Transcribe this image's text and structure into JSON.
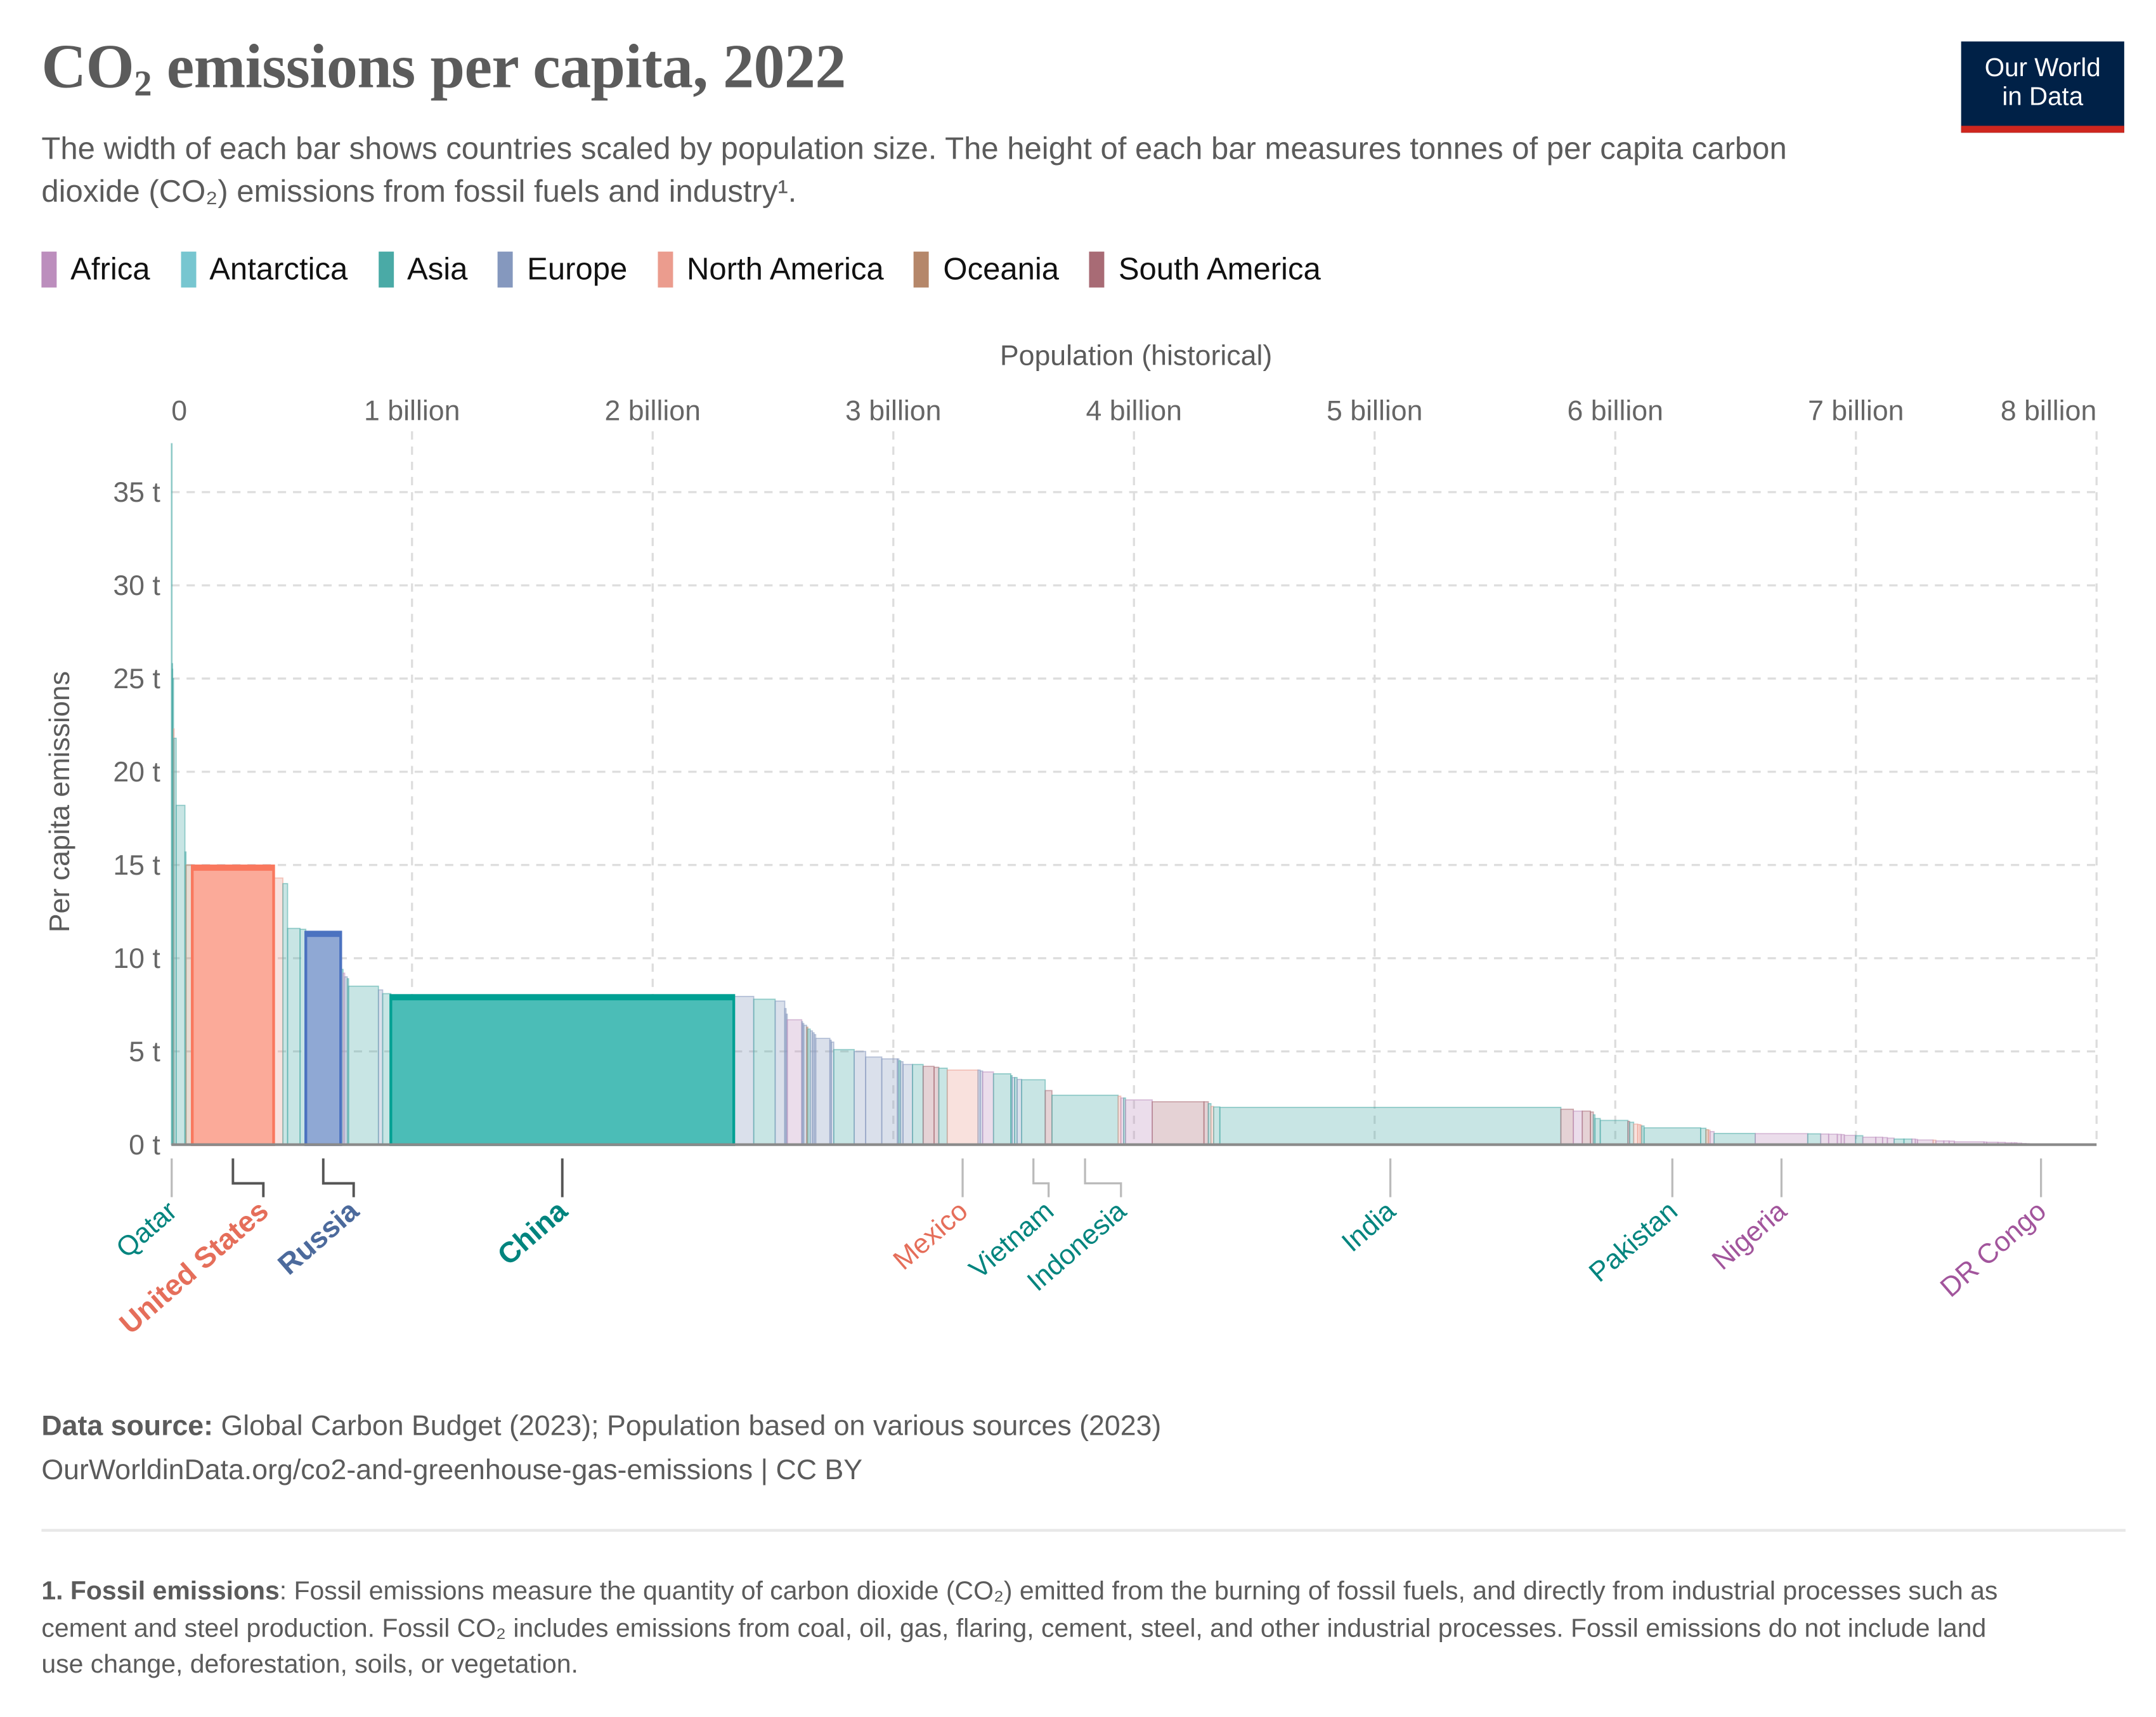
{
  "header": {
    "title_pre": "CO",
    "title_sub": "2",
    "title_post": " emissions per capita, 2022",
    "subtitle": "The width of each bar shows countries scaled by population size. The height of each bar measures tonnes of per capita carbon dioxide (CO₂) emissions from fossil fuels and industry¹.",
    "logo_line1": "Our World",
    "logo_line2": "in Data"
  },
  "legend": [
    {
      "label": "Africa",
      "color": "#bc8ebd"
    },
    {
      "label": "Antarctica",
      "color": "#77c6d0"
    },
    {
      "label": "Asia",
      "color": "#4aaaa6"
    },
    {
      "label": "Europe",
      "color": "#8598be"
    },
    {
      "label": "North America",
      "color": "#eb9c8e"
    },
    {
      "label": "Oceania",
      "color": "#b5876a"
    },
    {
      "label": "South America",
      "color": "#a86b75"
    }
  ],
  "chart_data": {
    "type": "bar",
    "variant": "variable-width (width = population, height = per capita emissions)",
    "xlabel": "Population (historical)",
    "ylabel": "Per capita emissions",
    "x_ticks": [
      "0",
      "1 billion",
      "2 billion",
      "3 billion",
      "4 billion",
      "5 billion",
      "6 billion",
      "7 billion",
      "8 billion"
    ],
    "y_ticks": [
      "0 t",
      "5 t",
      "10 t",
      "15 t",
      "20 t",
      "25 t",
      "30 t",
      "35 t"
    ],
    "xlim_billions": [
      0,
      8
    ],
    "ylim_tonnes": [
      0,
      38
    ],
    "grid": true,
    "highlight_colors": {
      "United States": {
        "fill": "#fbaa99",
        "stroke": "#f9785e"
      },
      "Russia": {
        "fill": "#8fa8d4",
        "stroke": "#4b72c0"
      },
      "China": {
        "fill": "#4bbdb7",
        "stroke": "#00a093"
      }
    },
    "label_colors": {
      "Asia": "#00847e",
      "North America": "#e56e5a",
      "Europe": "#4c6a9c",
      "Africa": "#a2559c",
      "South America": "#883039",
      "Oceania": "#8a5a3c"
    },
    "bars": [
      {
        "c": "Asia",
        "pop": 2.7,
        "v": 37.6,
        "label": "Qatar"
      },
      {
        "c": "Asia",
        "pop": 0.45,
        "v": 25.8
      },
      {
        "c": "Asia",
        "pop": 1.5,
        "v": 25.5
      },
      {
        "c": "Asia",
        "pop": 4.3,
        "v": 25.0
      },
      {
        "c": "North America",
        "pop": 1.5,
        "v": 22.3
      },
      {
        "c": "Asia",
        "pop": 9.4,
        "v": 21.8
      },
      {
        "c": "Asia",
        "pop": 36.4,
        "v": 18.2
      },
      {
        "c": "Asia",
        "pop": 4.6,
        "v": 15.7
      },
      {
        "c": "Oceania",
        "pop": 26,
        "v": 15.0
      },
      {
        "c": "North America",
        "pop": 338,
        "v": 14.95,
        "label": "United States",
        "highlight": true
      },
      {
        "c": "North America",
        "pop": 38.5,
        "v": 14.3
      },
      {
        "c": "Asia",
        "pop": 19.6,
        "v": 14.0
      },
      {
        "c": "Asia",
        "pop": 51.8,
        "v": 11.6
      },
      {
        "c": "Asia",
        "pop": 23.9,
        "v": 11.55
      },
      {
        "c": "Europe",
        "pop": 145,
        "v": 11.4,
        "label": "Russia",
        "highlight": true
      },
      {
        "c": "Asia",
        "pop": 3.4,
        "v": 11.0
      },
      {
        "c": "Asia",
        "pop": 6.4,
        "v": 9.4
      },
      {
        "c": "Africa",
        "pop": 6.8,
        "v": 9.2
      },
      {
        "c": "Europe",
        "pop": 10.5,
        "v": 9.0
      },
      {
        "c": "Asia",
        "pop": 5.6,
        "v": 8.9
      },
      {
        "c": "Asia",
        "pop": 124,
        "v": 8.5
      },
      {
        "c": "Europe",
        "pop": 17.6,
        "v": 8.3
      },
      {
        "c": "Asia",
        "pop": 34,
        "v": 8.1
      },
      {
        "c": "Asia",
        "pop": 1425,
        "v": 8.0,
        "label": "China",
        "highlight": true
      },
      {
        "c": "Europe",
        "pop": 83,
        "v": 7.95
      },
      {
        "c": "Asia",
        "pop": 89,
        "v": 7.8
      },
      {
        "c": "Europe",
        "pop": 39.9,
        "v": 7.7
      },
      {
        "c": "Europe",
        "pop": 5.5,
        "v": 7.3
      },
      {
        "c": "Europe",
        "pop": 5.0,
        "v": 7.0
      },
      {
        "c": "Africa",
        "pop": 60,
        "v": 6.7
      },
      {
        "c": "Europe",
        "pop": 3.2,
        "v": 6.6
      },
      {
        "c": "Europe",
        "pop": 5.5,
        "v": 6.5
      },
      {
        "c": "Europe",
        "pop": 11.7,
        "v": 6.4
      },
      {
        "c": "Oceania",
        "pop": 5.1,
        "v": 6.3
      },
      {
        "c": "Asia",
        "pop": 9.6,
        "v": 6.2
      },
      {
        "c": "Europe",
        "pop": 9.5,
        "v": 6.1
      },
      {
        "c": "Europe",
        "pop": 6.7,
        "v": 6.0
      },
      {
        "c": "Europe",
        "pop": 6.8,
        "v": 5.9
      },
      {
        "c": "Europe",
        "pop": 59,
        "v": 5.7
      },
      {
        "c": "Europe",
        "pop": 5.6,
        "v": 5.6
      },
      {
        "c": "Europe",
        "pop": 10.4,
        "v": 5.5
      },
      {
        "c": "Asia",
        "pop": 85,
        "v": 5.1
      },
      {
        "c": "Europe",
        "pop": 47.6,
        "v": 5.0
      },
      {
        "c": "Europe",
        "pop": 67,
        "v": 4.7
      },
      {
        "c": "Europe",
        "pop": 65,
        "v": 4.6
      },
      {
        "c": "Europe",
        "pop": 5.9,
        "v": 4.6
      },
      {
        "c": "Asia",
        "pop": 7.3,
        "v": 4.5
      },
      {
        "c": "Europe",
        "pop": 9.9,
        "v": 4.45
      },
      {
        "c": "Europe",
        "pop": 39.7,
        "v": 4.3
      },
      {
        "c": "Asia",
        "pop": 44,
        "v": 4.3
      },
      {
        "c": "South America",
        "pop": 45.5,
        "v": 4.2
      },
      {
        "c": "South America",
        "pop": 19.6,
        "v": 4.15
      },
      {
        "c": "Asia",
        "pop": 35,
        "v": 4.1
      },
      {
        "c": "North America",
        "pop": 128,
        "v": 4.0,
        "label": "Mexico"
      },
      {
        "c": "Europe",
        "pop": 8.8,
        "v": 4.0
      },
      {
        "c": "Europe",
        "pop": 10.4,
        "v": 3.95
      },
      {
        "c": "Africa",
        "pop": 45,
        "v": 3.9
      },
      {
        "c": "Asia",
        "pop": 72,
        "v": 3.8
      },
      {
        "c": "Asia",
        "pop": 5.5,
        "v": 3.7
      },
      {
        "c": "Europe",
        "pop": 10.5,
        "v": 3.6
      },
      {
        "c": "Asia",
        "pop": 10,
        "v": 3.6
      },
      {
        "c": "Europe",
        "pop": 19,
        "v": 3.5
      },
      {
        "c": "Asia",
        "pop": 98,
        "v": 3.48,
        "label": "Vietnam"
      },
      {
        "c": "South America",
        "pop": 28,
        "v": 2.9
      },
      {
        "c": "Asia",
        "pop": 275,
        "v": 2.65,
        "label": "Indonesia"
      },
      {
        "c": "North America",
        "pop": 11.2,
        "v": 2.6
      },
      {
        "c": "Africa",
        "pop": 12,
        "v": 2.5
      },
      {
        "c": "Asia",
        "pop": 7.5,
        "v": 2.5
      },
      {
        "c": "Africa",
        "pop": 111,
        "v": 2.4
      },
      {
        "c": "South America",
        "pop": 215,
        "v": 2.3
      },
      {
        "c": "South America",
        "pop": 18,
        "v": 2.3
      },
      {
        "c": "Asia",
        "pop": 11,
        "v": 2.2
      },
      {
        "c": "North America",
        "pop": 11,
        "v": 2.05
      },
      {
        "c": "Asia",
        "pop": 26,
        "v": 2.02
      },
      {
        "c": "Asia",
        "pop": 1417,
        "v": 2.0,
        "label": "India"
      },
      {
        "c": "South America",
        "pop": 52,
        "v": 1.9
      },
      {
        "c": "Africa",
        "pop": 37,
        "v": 1.8
      },
      {
        "c": "South America",
        "pop": 34,
        "v": 1.8
      },
      {
        "c": "South America",
        "pop": 12,
        "v": 1.75
      },
      {
        "c": "Asia",
        "pop": 6.7,
        "v": 1.6
      },
      {
        "c": "Asia",
        "pop": 22,
        "v": 1.4
      },
      {
        "c": "Asia",
        "pop": 115,
        "v": 1.3
      },
      {
        "c": "South America",
        "pop": 6.8,
        "v": 1.25
      },
      {
        "c": "Asia",
        "pop": 17,
        "v": 1.2
      },
      {
        "c": "North America",
        "pop": 17,
        "v": 1.1
      },
      {
        "c": "North America",
        "pop": 10,
        "v": 1.08
      },
      {
        "c": "North America",
        "pop": 6.3,
        "v": 1.05
      },
      {
        "c": "Asia",
        "pop": 10,
        "v": 1.0
      },
      {
        "c": "Asia",
        "pop": 235,
        "v": 0.9,
        "label": "Pakistan"
      },
      {
        "c": "Asia",
        "pop": 22,
        "v": 0.88
      },
      {
        "c": "Oceania",
        "pop": 10,
        "v": 0.8
      },
      {
        "c": "North America",
        "pop": 7,
        "v": 0.78
      },
      {
        "c": "Africa",
        "pop": 17,
        "v": 0.7
      },
      {
        "c": "Asia",
        "pop": 171,
        "v": 0.6
      },
      {
        "c": "Africa",
        "pop": 218,
        "v": 0.59,
        "label": "Nigeria"
      },
      {
        "c": "Asia",
        "pop": 54,
        "v": 0.58
      },
      {
        "c": "Africa",
        "pop": 33,
        "v": 0.57
      },
      {
        "c": "Africa",
        "pop": 36,
        "v": 0.56
      },
      {
        "c": "Africa",
        "pop": 16,
        "v": 0.55
      },
      {
        "c": "Africa",
        "pop": 13,
        "v": 0.54
      },
      {
        "c": "Africa",
        "pop": 47,
        "v": 0.5
      },
      {
        "c": "Asia",
        "pop": 30,
        "v": 0.48
      },
      {
        "c": "Africa",
        "pop": 54,
        "v": 0.4
      },
      {
        "c": "Africa",
        "pop": 28,
        "v": 0.4
      },
      {
        "c": "Africa",
        "pop": 20,
        "v": 0.38
      },
      {
        "c": "Africa",
        "pop": 28,
        "v": 0.35
      },
      {
        "c": "Asia",
        "pop": 41,
        "v": 0.3
      },
      {
        "c": "Asia",
        "pop": 33,
        "v": 0.3
      },
      {
        "c": "Africa",
        "pop": 14,
        "v": 0.3
      },
      {
        "c": "Africa",
        "pop": 9,
        "v": 0.28
      },
      {
        "c": "Africa",
        "pop": 65,
        "v": 0.25
      },
      {
        "c": "North America",
        "pop": 11.6,
        "v": 0.24
      },
      {
        "c": "Africa",
        "pop": 33,
        "v": 0.2
      },
      {
        "c": "Africa",
        "pop": 22,
        "v": 0.2
      },
      {
        "c": "Africa",
        "pop": 22,
        "v": 0.19
      },
      {
        "c": "Africa",
        "pop": 123,
        "v": 0.15
      },
      {
        "c": "Africa",
        "pop": 11,
        "v": 0.14
      },
      {
        "c": "Africa",
        "pop": 47,
        "v": 0.13
      },
      {
        "c": "Africa",
        "pop": 30,
        "v": 0.12
      },
      {
        "c": "Africa",
        "pop": 26,
        "v": 0.1
      },
      {
        "c": "Africa",
        "pop": 13.8,
        "v": 0.1
      },
      {
        "c": "Africa",
        "pop": 8.6,
        "v": 0.1
      },
      {
        "c": "Africa",
        "pop": 20,
        "v": 0.08
      },
      {
        "c": "Africa",
        "pop": 18,
        "v": 0.06
      },
      {
        "c": "Africa",
        "pop": 12.9,
        "v": 0.05
      },
      {
        "c": "Africa",
        "pop": 99,
        "v": 0.04,
        "label": "DR Congo"
      },
      {
        "c": "Africa",
        "pop": 17.6,
        "v": 0.04
      },
      {
        "c": "Africa",
        "pop": 5.6,
        "v": 0.04
      }
    ]
  },
  "footer": {
    "source_label": "Data source:",
    "source_text": " Global Carbon Budget (2023); Population based on various sources (2023)",
    "url_line": "OurWorldinData.org/co2-and-greenhouse-gas-emissions | CC BY",
    "footnote_label": "1. Fossil emissions",
    "footnote_text": ": Fossil emissions measure the quantity of carbon dioxide (CO₂) emitted from the burning of fossil fuels, and directly from industrial processes such as cement and steel production. Fossil CO₂ includes emissions from coal, oil, gas, flaring, cement, steel, and other industrial processes. Fossil emissions do not include land use change, deforestation, soils, or vegetation."
  }
}
